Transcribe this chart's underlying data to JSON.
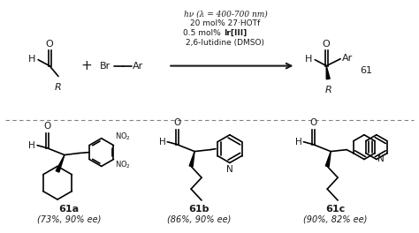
{
  "bg_color": "#ffffff",
  "reaction_conditions": [
    "hν (λ = 400-700 nm)",
    "20 mol% 27·HOTf",
    "0.5 mol% Ir[III]",
    "2,6-lutidine (DMSO)"
  ],
  "product_label": "61",
  "compounds": [
    "61a",
    "61b",
    "61c"
  ],
  "yields": [
    "(73%, 90% ee)",
    "(86%, 90% ee)",
    "(90%, 82% ee)"
  ],
  "text_color": "#1a1a1a",
  "line_color": "#000000"
}
